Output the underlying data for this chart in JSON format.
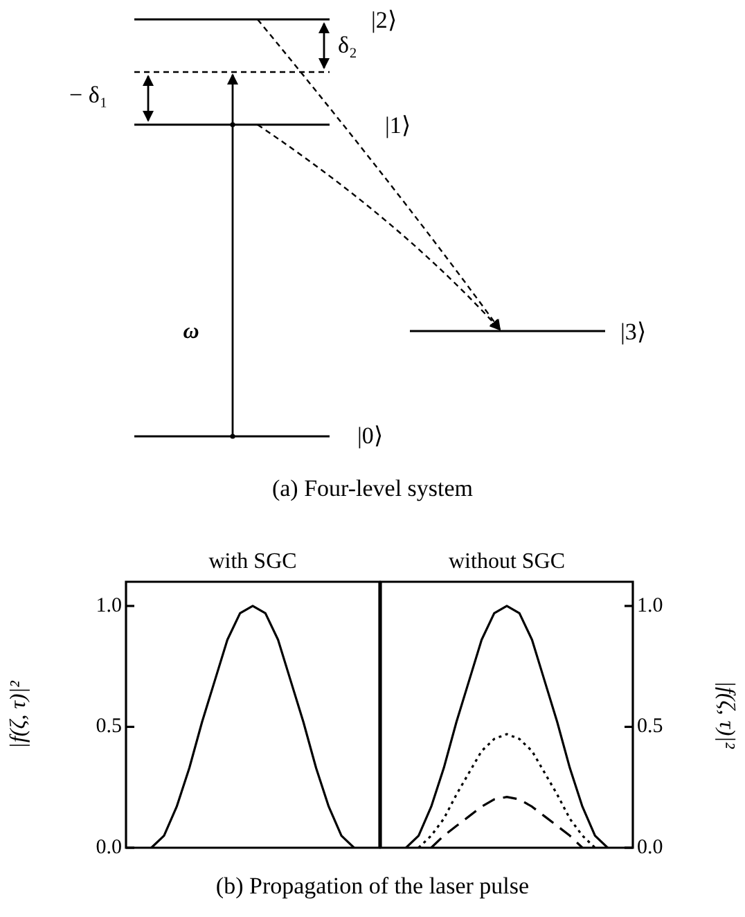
{
  "chart_data": [
    {
      "type": "other",
      "annotations": [
        "|2⟩",
        "|1⟩",
        "|0⟩",
        "|3⟩",
        "δ₂",
        "− δ₁",
        "ω",
        "(a) Four-level system"
      ]
    },
    {
      "type": "line",
      "title": "with SGC",
      "ylabel": "|f(ζ, τ)|²",
      "tick_labels": "y",
      "categories": [
        null,
        null,
        null,
        null,
        null,
        null,
        null,
        null,
        null,
        null,
        null,
        null,
        null,
        null,
        null,
        null,
        null,
        null,
        null,
        null,
        null
      ],
      "ylim": [
        0,
        1.1
      ],
      "yticks": [
        {
          "value": 0,
          "label": "0.0"
        },
        {
          "value": 0.5,
          "label": "0.5"
        },
        {
          "value": 1,
          "label": "1.0"
        }
      ],
      "series": [
        {
          "color": "#000000",
          "line_style": "solid",
          "values": [
            null,
            null,
            0,
            0.05,
            0.17,
            0.33,
            0.52,
            0.69,
            0.86,
            0.97,
            1.0,
            0.97,
            0.86,
            0.69,
            0.52,
            0.33,
            0.17,
            0.05,
            0,
            null,
            null
          ]
        }
      ]
    },
    {
      "type": "line",
      "title": "without SGC",
      "ylabel": "|f(ζ, τ)|²",
      "tick_labels": "y",
      "annotations": [
        "(b) Propagation of the laser pulse"
      ],
      "categories": [
        null,
        null,
        null,
        null,
        null,
        null,
        null,
        null,
        null,
        null,
        null,
        null,
        null,
        null,
        null,
        null,
        null,
        null,
        null,
        null,
        null
      ],
      "ylim": [
        0,
        1.1
      ],
      "yticks": [
        {
          "value": 0,
          "label": "0.0"
        },
        {
          "value": 0.5,
          "label": "0.5"
        },
        {
          "value": 1,
          "label": "1.0"
        }
      ],
      "series": [
        {
          "color": "#000000",
          "line_style": "solid",
          "values": [
            null,
            null,
            0,
            0.05,
            0.17,
            0.33,
            0.52,
            0.69,
            0.86,
            0.97,
            1.0,
            0.97,
            0.86,
            0.69,
            0.52,
            0.33,
            0.17,
            0.05,
            0,
            null,
            null
          ]
        },
        {
          "color": "#000000",
          "line_style": "dotted",
          "values": [
            null,
            null,
            null,
            0,
            0.05,
            0.12,
            0.22,
            0.31,
            0.4,
            0.45,
            0.47,
            0.45,
            0.4,
            0.31,
            0.22,
            0.12,
            0.05,
            0,
            null,
            null,
            null
          ]
        },
        {
          "color": "#000000",
          "line_style": "dashed",
          "values": [
            null,
            null,
            null,
            null,
            0,
            0.05,
            0.09,
            0.13,
            0.17,
            0.2,
            0.21,
            0.2,
            0.17,
            0.13,
            0.09,
            0.05,
            0,
            null,
            null,
            null,
            null
          ]
        }
      ]
    }
  ]
}
